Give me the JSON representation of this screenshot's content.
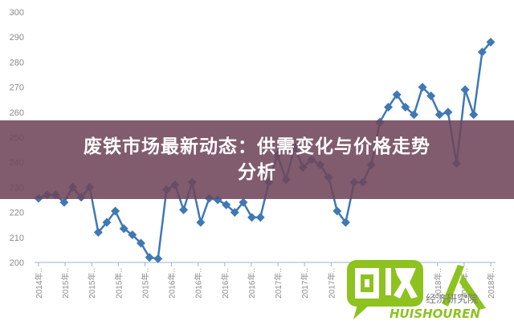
{
  "banner": {
    "title_line1": "废铁市场最新动态：供需变化与价格走势",
    "title_line2": "分析"
  },
  "logo": {
    "text": "回收人",
    "sub": "经济研究院",
    "latin": "HUISHOUREN",
    "color": "#8dc21f"
  },
  "chart_data": {
    "type": "line",
    "title": "",
    "xlabel": "",
    "ylabel": "",
    "ylim": [
      200,
      300
    ],
    "yticks": [
      200,
      210,
      220,
      230,
      240,
      250,
      260,
      270,
      280,
      290,
      300
    ],
    "grid": false,
    "marker": "diamond",
    "line_color": "#3f78b5",
    "xtick_labels": [
      "2014年..",
      "2015年..",
      "2015年..",
      "2015年..",
      "2015年..",
      "2016年..",
      "2016年..",
      "2016年..",
      "2016年..",
      "2017年..",
      "2017年..",
      "2017年..",
      "2017年..",
      "2018年..",
      "2018年..",
      "2018年..",
      "2018年..",
      "2018年.."
    ],
    "values": [
      225.6,
      227,
      227,
      224,
      230,
      226,
      230,
      212,
      216,
      220.5,
      213.5,
      211,
      207.7,
      202,
      201.5,
      229,
      231,
      221,
      232,
      216,
      225.6,
      225,
      223,
      220,
      224,
      218,
      218,
      232,
      243,
      233,
      246,
      238,
      241,
      239,
      234,
      220.5,
      216,
      232,
      232,
      239,
      256,
      262,
      267,
      262,
      259,
      270,
      266.5,
      259,
      260,
      239.5,
      269,
      259,
      284,
      288
    ]
  }
}
